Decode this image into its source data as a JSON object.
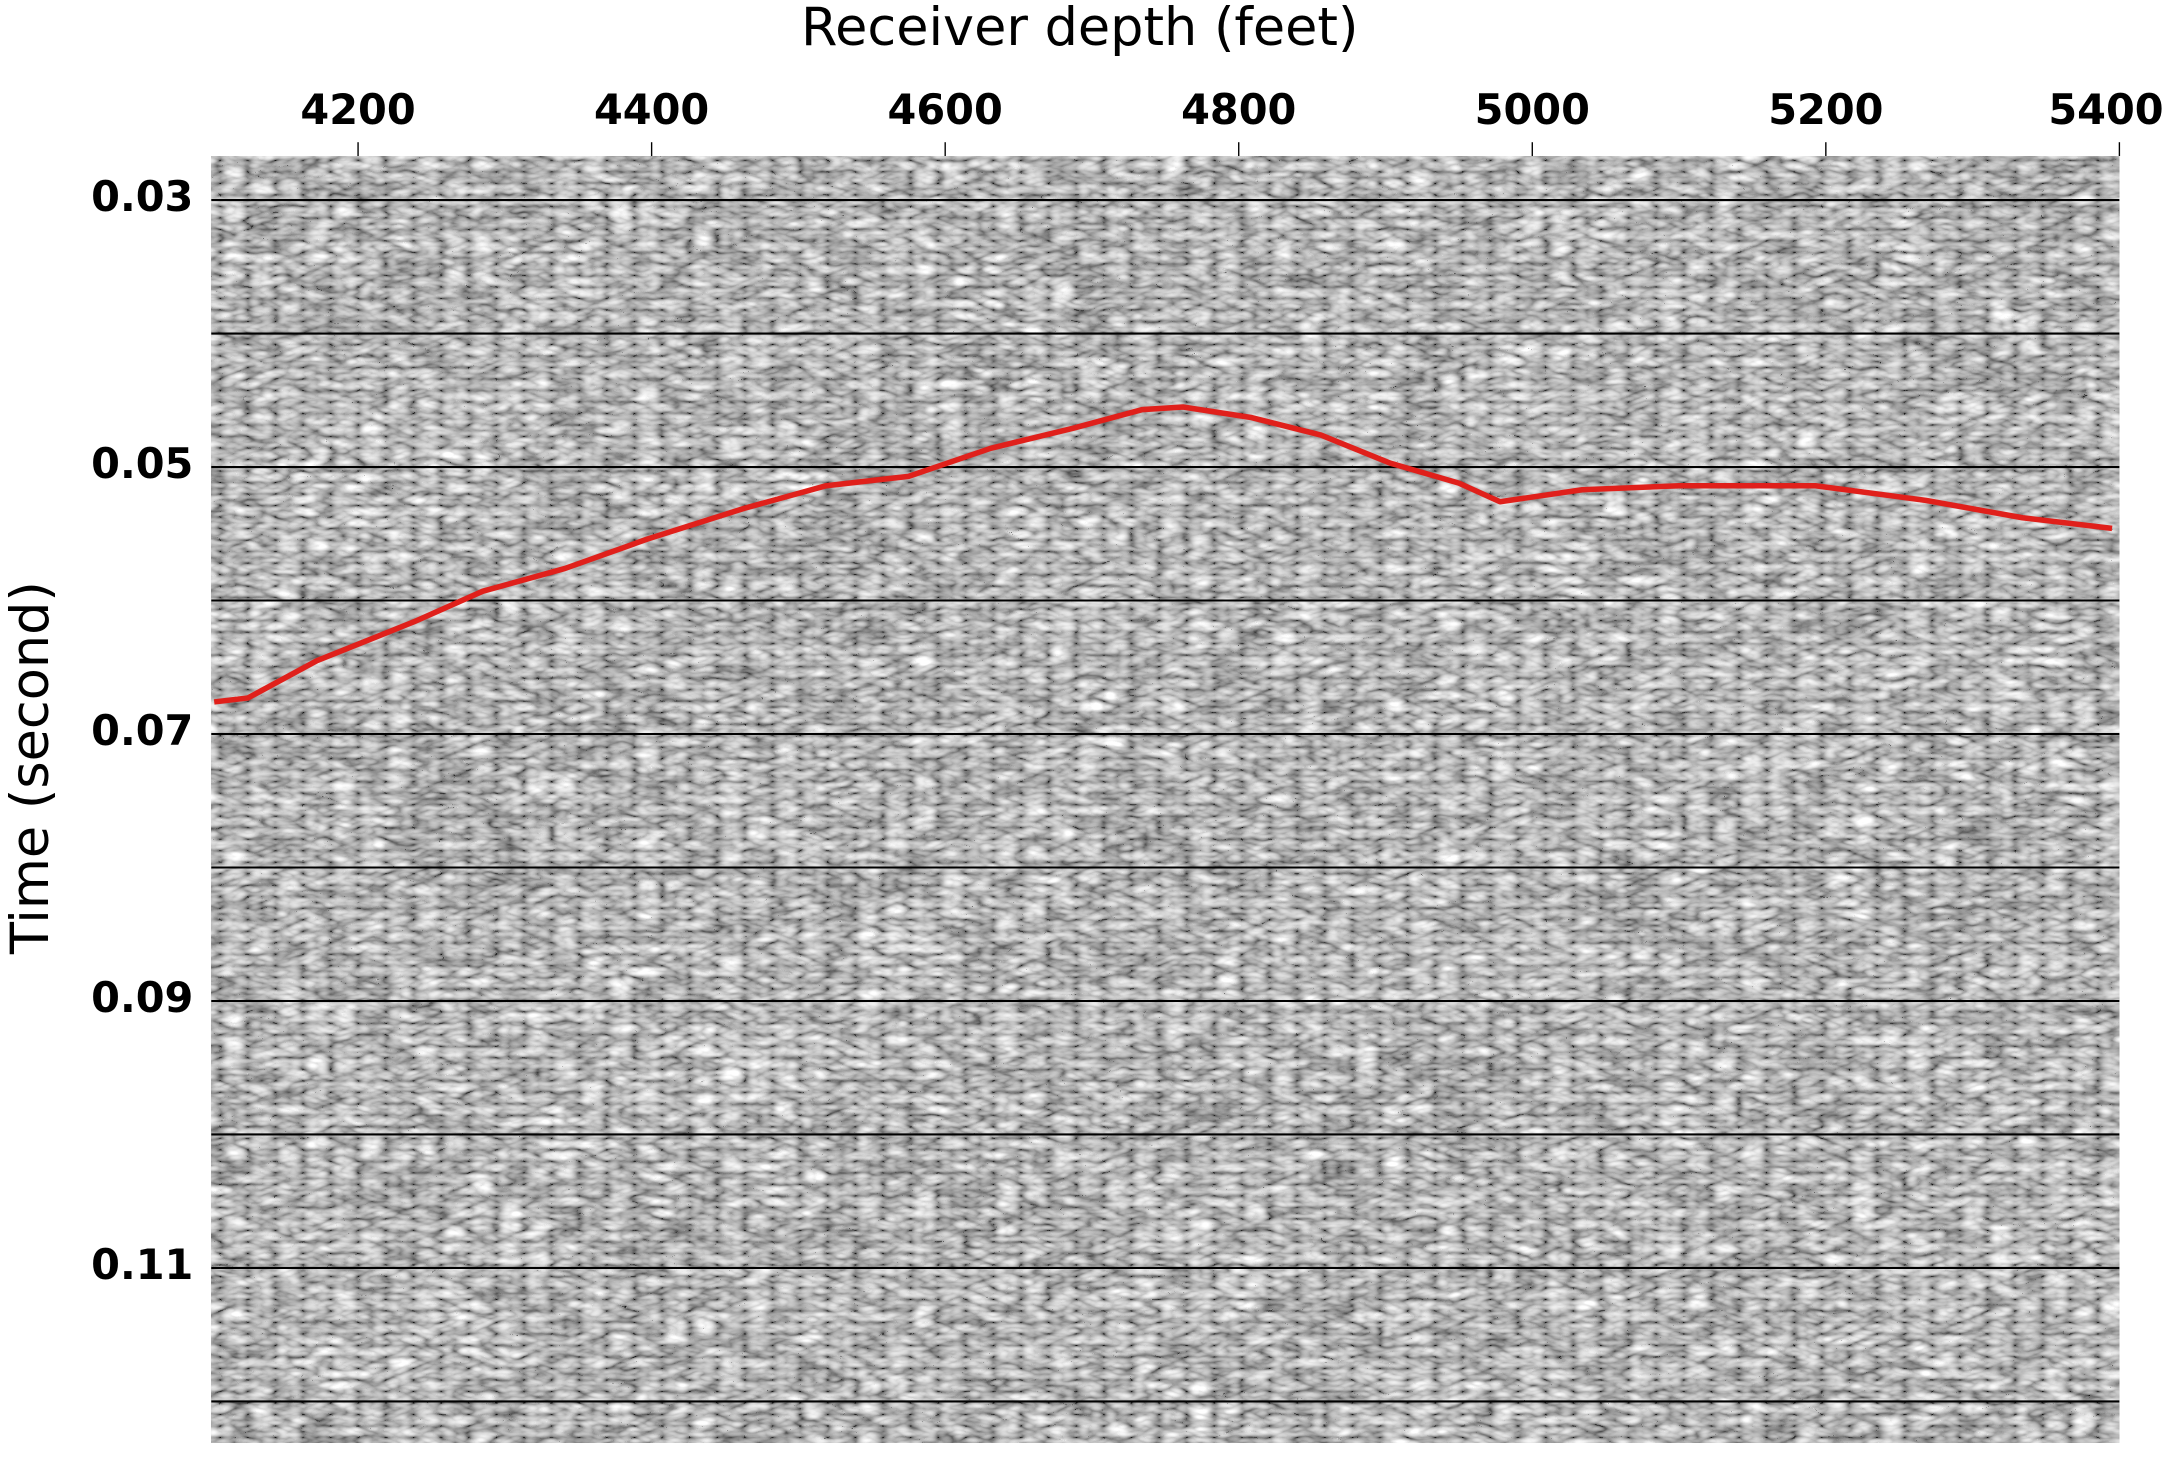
{
  "chart_data": {
    "type": "line",
    "x_label": "Receiver depth (feet)",
    "y_label": "Time (second)",
    "xlim": [
      4100,
      5400
    ],
    "xticks": [
      4200,
      4400,
      4600,
      4800,
      5000,
      5200,
      5400
    ],
    "ylim": [
      0.0267,
      0.1231
    ],
    "y_reversed": true,
    "yticks": [
      0.03,
      0.05,
      0.07,
      0.09,
      0.11
    ],
    "y_minor_grid": [
      0.04,
      0.06,
      0.08,
      0.1,
      0.12
    ],
    "grid": true,
    "series": [
      {
        "color": "#e0201b",
        "x": [
          4102,
          4125,
          4172,
          4238,
          4285,
          4341,
          4397,
          4463,
          4519,
          4575,
          4631,
          4687,
          4734,
          4762,
          4809,
          4856,
          4903,
          4950,
          4978,
          5034,
          5100,
          5193,
          5268,
          5334,
          5395
        ],
        "values": [
          0.0676,
          0.0673,
          0.0645,
          0.0616,
          0.0593,
          0.0576,
          0.0554,
          0.0531,
          0.0514,
          0.0507,
          0.0486,
          0.0471,
          0.0457,
          0.0455,
          0.0463,
          0.0476,
          0.0497,
          0.0512,
          0.0526,
          0.0517,
          0.0514,
          0.0514,
          0.0525,
          0.0538,
          0.0546
        ]
      }
    ]
  }
}
